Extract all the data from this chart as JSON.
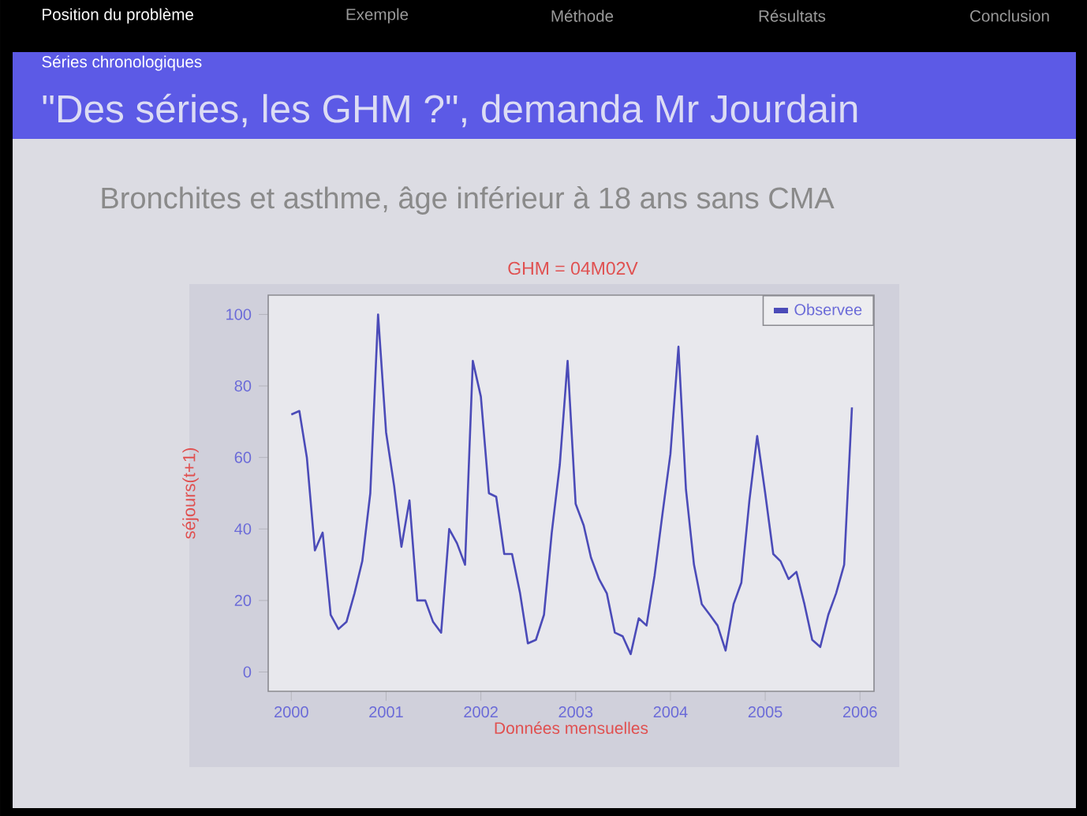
{
  "chart_data": {
    "type": "line",
    "title": "\"Des séries, les GHM ?\", demanda Mr Jourdain",
    "subtitle": "Bronchites et asthme, âge inférieur à 18 ans sans CMA",
    "annotations": [
      "Position du problème",
      "Exemple",
      "Méthode",
      "Résultats",
      "Conclusion",
      "Séries chronologiques",
      "GHM = 04M02V"
    ],
    "xlabel": "Données mensuelles",
    "ylabel": "séjours(t+1)",
    "x": [
      "2000-01",
      "2000-02",
      "2000-03",
      "2000-04",
      "2000-05",
      "2000-06",
      "2000-07",
      "2000-08",
      "2000-09",
      "2000-10",
      "2000-11",
      "2000-12",
      "2001-01",
      "2001-02",
      "2001-03",
      "2001-04",
      "2001-05",
      "2001-06",
      "2001-07",
      "2001-08",
      "2001-09",
      "2001-10",
      "2001-11",
      "2001-12",
      "2002-01",
      "2002-02",
      "2002-03",
      "2002-04",
      "2002-05",
      "2002-06",
      "2002-07",
      "2002-08",
      "2002-09",
      "2002-10",
      "2002-11",
      "2002-12",
      "2003-01",
      "2003-02",
      "2003-03",
      "2003-04",
      "2003-05",
      "2003-06",
      "2003-07",
      "2003-08",
      "2003-09",
      "2003-10",
      "2003-11",
      "2003-12",
      "2004-01",
      "2004-02",
      "2004-03",
      "2004-04",
      "2004-05",
      "2004-06",
      "2004-07",
      "2004-08",
      "2004-09",
      "2004-10",
      "2004-11",
      "2004-12",
      "2005-01",
      "2005-02",
      "2005-03",
      "2005-04",
      "2005-05",
      "2005-06",
      "2005-07",
      "2005-08",
      "2005-09",
      "2005-10",
      "2005-11",
      "2005-12"
    ],
    "series": [
      {
        "name": "Observee",
        "color": "#4b4bb8",
        "values": [
          72,
          73,
          60,
          34,
          39,
          16,
          12,
          14,
          22,
          31,
          50,
          100,
          67,
          52,
          35,
          48,
          20,
          20,
          14,
          11,
          40,
          36,
          30,
          87,
          77,
          50,
          49,
          33,
          33,
          22,
          8,
          9,
          16,
          39,
          58,
          87,
          47,
          41,
          32,
          26,
          22,
          11,
          10,
          5,
          15,
          13,
          27,
          44,
          61,
          91,
          51,
          30,
          19,
          16,
          13,
          6,
          19,
          25,
          48,
          66,
          50,
          33,
          31,
          26,
          28,
          19,
          9,
          7,
          16,
          22,
          30,
          74
        ]
      }
    ],
    "xlim": [
      "1999-10-04",
      "2006-02-24"
    ],
    "xticks": [
      "2000",
      "2001",
      "2002",
      "2003",
      "2004",
      "2005",
      "2006"
    ],
    "ylim": [
      -5.4,
      105.4
    ],
    "yticks": [
      0,
      20,
      40,
      60,
      80,
      100
    ],
    "legend": "top right"
  }
}
